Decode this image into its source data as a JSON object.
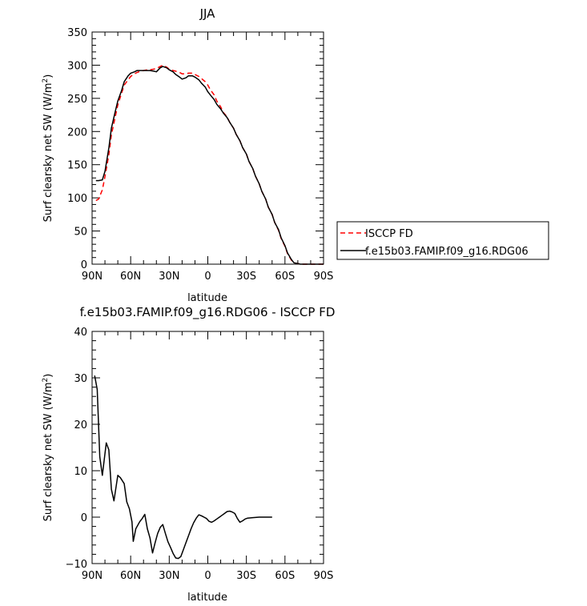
{
  "chart_data": [
    {
      "type": "line",
      "title": "JJA",
      "xlabel": "latitude",
      "ylabel": "Surf clearsky net SW (W/m²)",
      "ylabel_main": "Surf clearsky net SW (W/m",
      "ylabel_sup": "2",
      "ylabel_end": ")",
      "xlim": [
        90,
        -90
      ],
      "ylim": [
        0,
        350
      ],
      "x_ticks": [
        90,
        60,
        30,
        0,
        -30,
        -60,
        -90
      ],
      "x_tick_labels": [
        "90N",
        "60N",
        "30N",
        "0",
        "30S",
        "60S",
        "90S"
      ],
      "y_ticks": [
        0,
        50,
        100,
        150,
        200,
        250,
        300,
        350
      ],
      "y_tick_labels": [
        "0",
        "50",
        "100",
        "150",
        "200",
        "250",
        "300",
        "350"
      ],
      "legend_position": "right, outside plot",
      "series": [
        {
          "name": "ISCCP FD",
          "color": "#ff0000",
          "dash": "dashed",
          "points": [
            [
              87,
              96
            ],
            [
              85,
              98
            ],
            [
              82,
              112
            ],
            [
              80,
              132
            ],
            [
              77,
              165
            ],
            [
              75,
              195
            ],
            [
              72,
              222
            ],
            [
              70,
              240
            ],
            [
              67,
              258
            ],
            [
              65,
              270
            ],
            [
              62,
              278
            ],
            [
              60,
              283
            ],
            [
              57,
              287
            ],
            [
              55,
              289
            ],
            [
              52,
              291
            ],
            [
              50,
              292
            ],
            [
              47,
              293
            ],
            [
              45,
              293
            ],
            [
              42,
              294
            ],
            [
              40,
              295
            ],
            [
              37,
              298
            ],
            [
              35,
              300
            ],
            [
              32,
              297
            ],
            [
              30,
              294
            ],
            [
              27,
              292
            ],
            [
              25,
              291
            ],
            [
              22,
              289
            ],
            [
              20,
              287
            ],
            [
              17,
              287
            ],
            [
              15,
              288
            ],
            [
              12,
              288
            ],
            [
              10,
              286
            ],
            [
              7,
              283
            ],
            [
              5,
              280
            ],
            [
              2,
              275
            ],
            [
              0,
              270
            ],
            [
              -2,
              263
            ],
            [
              -5,
              255
            ],
            [
              -7,
              246
            ],
            [
              -10,
              237
            ],
            [
              -12,
              229
            ],
            [
              -15,
              222
            ],
            [
              -17,
              214
            ],
            [
              -20,
              205
            ],
            [
              -22,
              196
            ],
            [
              -25,
              186
            ],
            [
              -27,
              176
            ],
            [
              -30,
              166
            ],
            [
              -32,
              155
            ],
            [
              -35,
              144
            ],
            [
              -37,
              133
            ],
            [
              -40,
              121
            ],
            [
              -42,
              110
            ],
            [
              -45,
              98
            ],
            [
              -47,
              86
            ],
            [
              -50,
              75
            ],
            [
              -52,
              63
            ],
            [
              -55,
              51
            ],
            [
              -57,
              39
            ],
            [
              -60,
              27
            ],
            [
              -62,
              16
            ],
            [
              -65,
              6
            ],
            [
              -67,
              2
            ],
            [
              -70,
              1
            ],
            [
              -72,
              0
            ],
            [
              -75,
              0
            ],
            [
              -80,
              0
            ],
            [
              -85,
              0
            ],
            [
              -90,
              0
            ]
          ]
        },
        {
          "name": "f.e15b03.FAMIP.f09_g16.RDG06",
          "color": "#000000",
          "dash": "solid",
          "points": [
            [
              87,
              126
            ],
            [
              85,
              126
            ],
            [
              82,
              127
            ],
            [
              80,
              140
            ],
            [
              77,
              175
            ],
            [
              75,
              205
            ],
            [
              72,
              230
            ],
            [
              70,
              246
            ],
            [
              67,
              262
            ],
            [
              65,
              275
            ],
            [
              62,
              284
            ],
            [
              60,
              288
            ],
            [
              57,
              290
            ],
            [
              55,
              292
            ],
            [
              52,
              292
            ],
            [
              50,
              292
            ],
            [
              47,
              292
            ],
            [
              45,
              292
            ],
            [
              42,
              291
            ],
            [
              40,
              290
            ],
            [
              37,
              296
            ],
            [
              35,
              298
            ],
            [
              32,
              296
            ],
            [
              30,
              293
            ],
            [
              27,
              290
            ],
            [
              25,
              286
            ],
            [
              22,
              282
            ],
            [
              20,
              279
            ],
            [
              17,
              281
            ],
            [
              15,
              284
            ],
            [
              12,
              284
            ],
            [
              10,
              282
            ],
            [
              7,
              278
            ],
            [
              5,
              273
            ],
            [
              2,
              267
            ],
            [
              0,
              260
            ],
            [
              -2,
              255
            ],
            [
              -5,
              248
            ],
            [
              -7,
              241
            ],
            [
              -10,
              234
            ],
            [
              -12,
              228
            ],
            [
              -15,
              221
            ],
            [
              -17,
              214
            ],
            [
              -20,
              205
            ],
            [
              -22,
              196
            ],
            [
              -25,
              186
            ],
            [
              -27,
              176
            ],
            [
              -30,
              166
            ],
            [
              -32,
              155
            ],
            [
              -35,
              144
            ],
            [
              -37,
              133
            ],
            [
              -40,
              121
            ],
            [
              -42,
              110
            ],
            [
              -45,
              98
            ],
            [
              -47,
              86
            ],
            [
              -50,
              75
            ],
            [
              -52,
              63
            ],
            [
              -55,
              52
            ],
            [
              -57,
              40
            ],
            [
              -60,
              28
            ],
            [
              -62,
              17
            ],
            [
              -65,
              7
            ],
            [
              -67,
              2
            ],
            [
              -70,
              1
            ],
            [
              -72,
              0
            ],
            [
              -75,
              0
            ],
            [
              -80,
              0
            ],
            [
              -85,
              0
            ],
            [
              -90,
              0
            ]
          ]
        }
      ]
    },
    {
      "type": "line",
      "title": "f.e15b03.FAMIP.f09_g16.RDG06 - ISCCP FD",
      "xlabel": "latitude",
      "ylabel": "Surf clearsky net SW (W/m²)",
      "ylabel_main": "Surf clearsky net SW (W/m",
      "ylabel_sup": "2",
      "ylabel_end": ")",
      "xlim": [
        90,
        -90
      ],
      "ylim": [
        -10,
        40
      ],
      "x_ticks": [
        90,
        60,
        30,
        0,
        -30,
        -60,
        -90
      ],
      "x_tick_labels": [
        "90N",
        "60N",
        "30N",
        "0",
        "30S",
        "60S",
        "90S"
      ],
      "y_ticks": [
        -10,
        0,
        10,
        20,
        30,
        40
      ],
      "y_tick_labels": [
        "−10",
        "0",
        "10",
        "20",
        "30",
        "40"
      ],
      "series": [
        {
          "color": "#000000",
          "dash": "solid",
          "points": [
            [
              88,
              30.5
            ],
            [
              86,
              27.5
            ],
            [
              84,
              13
            ],
            [
              82,
              9
            ],
            [
              79,
              16
            ],
            [
              77,
              14.5
            ],
            [
              75,
              6
            ],
            [
              73,
              3.5
            ],
            [
              70,
              9
            ],
            [
              68,
              8.5
            ],
            [
              65,
              7.2
            ],
            [
              63,
              3.3
            ],
            [
              61,
              1.8
            ],
            [
              59,
              -1
            ],
            [
              58,
              -5.2
            ],
            [
              56,
              -2.5
            ],
            [
              53,
              -1
            ],
            [
              51,
              -0.3
            ],
            [
              49,
              0.6
            ],
            [
              47,
              -2.5
            ],
            [
              45,
              -4.5
            ],
            [
              43,
              -7.7
            ],
            [
              41,
              -5.5
            ],
            [
              39,
              -3.5
            ],
            [
              37,
              -2.2
            ],
            [
              35,
              -1.6
            ],
            [
              33,
              -3.5
            ],
            [
              31,
              -5.3
            ],
            [
              29,
              -6.5
            ],
            [
              27,
              -7.8
            ],
            [
              25,
              -8.8
            ],
            [
              23,
              -8.9
            ],
            [
              21,
              -8.5
            ],
            [
              19,
              -7
            ],
            [
              17,
              -5.5
            ],
            [
              15,
              -4
            ],
            [
              13,
              -2.5
            ],
            [
              11,
              -1.2
            ],
            [
              9,
              -0.2
            ],
            [
              7,
              0.5
            ],
            [
              5,
              0.3
            ],
            [
              3,
              0
            ],
            [
              1,
              -0.3
            ],
            [
              -1,
              -0.9
            ],
            [
              -3,
              -1.1
            ],
            [
              -5,
              -0.8
            ],
            [
              -7,
              -0.4
            ],
            [
              -9,
              0
            ],
            [
              -11,
              0.4
            ],
            [
              -13,
              0.8
            ],
            [
              -15,
              1.2
            ],
            [
              -17,
              1.3
            ],
            [
              -19,
              1.1
            ],
            [
              -21,
              0.8
            ],
            [
              -23,
              -0.3
            ],
            [
              -25,
              -1.1
            ],
            [
              -27,
              -0.8
            ],
            [
              -29,
              -0.4
            ],
            [
              -31,
              -0.2
            ],
            [
              -35,
              -0.1
            ],
            [
              -40,
              0
            ],
            [
              -45,
              0
            ],
            [
              -50,
              0
            ]
          ]
        }
      ]
    }
  ]
}
